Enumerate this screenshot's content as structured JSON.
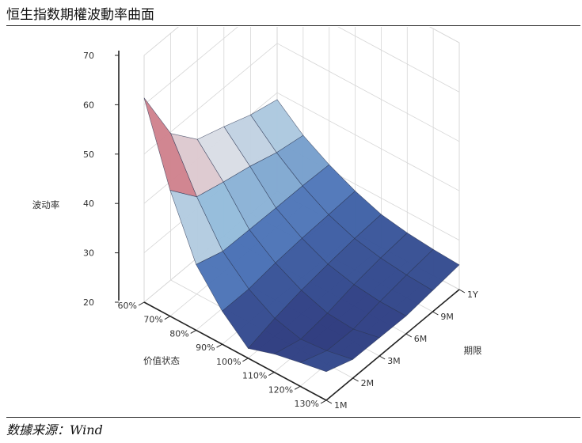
{
  "title": "恒生指数期權波動率曲面",
  "source": "数據来源：Wind",
  "chart_data": {
    "type": "surface",
    "title": "恒生指数期權波動率曲面",
    "x_axis": {
      "label": "价值状态",
      "ticks": [
        "60%",
        "70%",
        "80%",
        "90%",
        "100%",
        "110%",
        "120%",
        "130%"
      ]
    },
    "y_axis": {
      "label": "期限",
      "ticks": [
        "1M",
        "2M",
        "3M",
        "6M",
        "9M",
        "1Y"
      ]
    },
    "z_axis": {
      "label": "波动率",
      "ticks": [
        "20",
        "30",
        "40",
        "50",
        "60",
        "70"
      ],
      "range": [
        20,
        70
      ]
    },
    "grid": true,
    "colorscale": "red (high) to white to blue (low)",
    "values": [
      [
        61.4,
        49.7,
        44.0,
        42.1,
        40.0,
        38.6
      ],
      [
        45.5,
        39.7,
        38.2,
        36.9,
        35.2,
        34.2
      ],
      [
        33.3,
        31.5,
        31.4,
        31.3,
        31.3,
        31.1
      ],
      [
        26.7,
        26.7,
        27.5,
        28.0,
        28.3,
        28.6
      ],
      [
        22.0,
        23.6,
        24.8,
        25.6,
        26.3,
        26.7
      ],
      [
        23.7,
        22.2,
        23.0,
        24.3,
        25.2,
        25.8
      ],
      [
        24.8,
        22.7,
        22.6,
        23.7,
        24.6,
        25.3
      ],
      [
        25.8,
        23.8,
        23.7,
        23.6,
        24.3,
        25.0
      ]
    ]
  }
}
